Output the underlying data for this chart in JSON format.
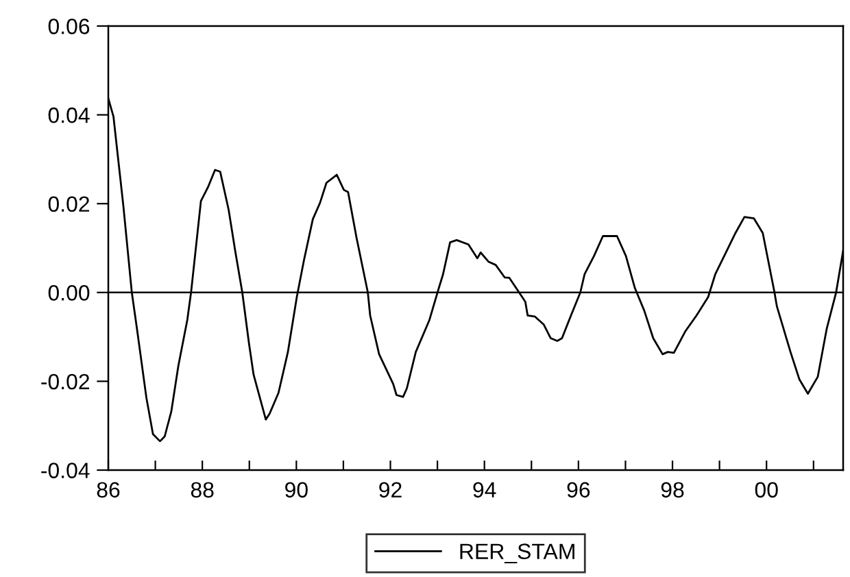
{
  "chart_data": {
    "type": "line",
    "x": [
      1986.0,
      1986.11,
      1986.18,
      1986.32,
      1986.5,
      1986.61,
      1986.81,
      1986.95,
      1987.1,
      1987.2,
      1987.34,
      1987.49,
      1987.68,
      1987.76,
      1987.97,
      1988.12,
      1988.27,
      1988.38,
      1988.56,
      1988.7,
      1988.85,
      1988.99,
      1989.09,
      1989.35,
      1989.43,
      1989.62,
      1989.82,
      1990.01,
      1990.16,
      1990.35,
      1990.5,
      1990.64,
      1990.86,
      1991.01,
      1991.1,
      1991.28,
      1991.52,
      1991.57,
      1991.76,
      1992.06,
      1992.13,
      1992.27,
      1992.35,
      1992.54,
      1992.83,
      1993.03,
      1993.12,
      1993.27,
      1993.41,
      1993.66,
      1993.85,
      1993.92,
      1994.09,
      1994.24,
      1994.43,
      1994.53,
      1994.87,
      1994.92,
      1995.07,
      1995.26,
      1995.41,
      1995.55,
      1995.65,
      1995.84,
      1996.04,
      1996.13,
      1996.33,
      1996.52,
      1996.82,
      1997.01,
      1997.2,
      1997.4,
      1997.59,
      1997.79,
      1997.9,
      1998.03,
      1998.27,
      1998.51,
      1998.76,
      1998.91,
      1999.1,
      1999.34,
      1999.53,
      1999.73,
      1999.92,
      2000.17,
      2000.22,
      2000.51,
      2000.7,
      2000.88,
      2001.09,
      2001.28,
      2001.48,
      2001.63
    ],
    "series": [
      {
        "name": "RER_STAM",
        "color": "#000000",
        "values": [
          0.0437,
          0.0396,
          0.0329,
          0.0195,
          0.0,
          -0.0082,
          -0.0237,
          -0.0319,
          -0.0335,
          -0.0324,
          -0.0268,
          -0.0165,
          -0.0062,
          0.0,
          0.0206,
          0.0237,
          0.0276,
          0.0272,
          0.0186,
          0.0093,
          0.0,
          -0.0113,
          -0.0185,
          -0.0286,
          -0.0273,
          -0.0226,
          -0.0134,
          -0.001,
          0.0072,
          0.0165,
          0.0201,
          0.0247,
          0.0265,
          0.0231,
          0.0226,
          0.0123,
          0.0,
          -0.0052,
          -0.0139,
          -0.0206,
          -0.0231,
          -0.0235,
          -0.0216,
          -0.0134,
          -0.0062,
          0.001,
          0.0041,
          0.0113,
          0.0118,
          0.0108,
          0.0077,
          0.009,
          0.0069,
          0.0062,
          0.0034,
          0.0033,
          -0.0021,
          -0.0052,
          -0.0054,
          -0.0072,
          -0.0103,
          -0.0109,
          -0.0103,
          -0.0052,
          0.0,
          0.0041,
          0.0082,
          0.0127,
          0.0127,
          0.0082,
          0.001,
          -0.0041,
          -0.0103,
          -0.0139,
          -0.0134,
          -0.0136,
          -0.0088,
          -0.0052,
          -0.001,
          0.0041,
          0.0082,
          0.0134,
          0.017,
          0.0167,
          0.0134,
          0.0,
          -0.0031,
          -0.0134,
          -0.0196,
          -0.0228,
          -0.019,
          -0.0082,
          0.0,
          0.0094
        ]
      }
    ],
    "xlim": [
      1986,
      2001.63
    ],
    "xticks": [
      {
        "value": 1986,
        "label": "86"
      },
      {
        "value": 1987,
        "label": null
      },
      {
        "value": 1988,
        "label": "88"
      },
      {
        "value": 1989,
        "label": null
      },
      {
        "value": 1990,
        "label": "90"
      },
      {
        "value": 1991,
        "label": null
      },
      {
        "value": 1992,
        "label": "92"
      },
      {
        "value": 1993,
        "label": null
      },
      {
        "value": 1994,
        "label": "94"
      },
      {
        "value": 1995,
        "label": null
      },
      {
        "value": 1996,
        "label": "96"
      },
      {
        "value": 1997,
        "label": null
      },
      {
        "value": 1998,
        "label": "98"
      },
      {
        "value": 1999,
        "label": null
      },
      {
        "value": 2000,
        "label": "00"
      },
      {
        "value": 2001,
        "label": null
      }
    ],
    "ylim": [
      -0.04,
      0.06
    ],
    "yticks": [
      {
        "value": -0.04,
        "label": "-0.04"
      },
      {
        "value": -0.02,
        "label": "-0.02"
      },
      {
        "value": 0.0,
        "label": "0.00"
      },
      {
        "value": 0.02,
        "label": "0.02"
      },
      {
        "value": 0.04,
        "label": "0.04"
      },
      {
        "value": 0.06,
        "label": "0.06"
      }
    ],
    "ref_lines": [
      {
        "axis": "y",
        "value": 0.0,
        "color": "#000000"
      }
    ],
    "grid": false,
    "legend": "bottom",
    "marker": "none",
    "line_style": "solid"
  }
}
